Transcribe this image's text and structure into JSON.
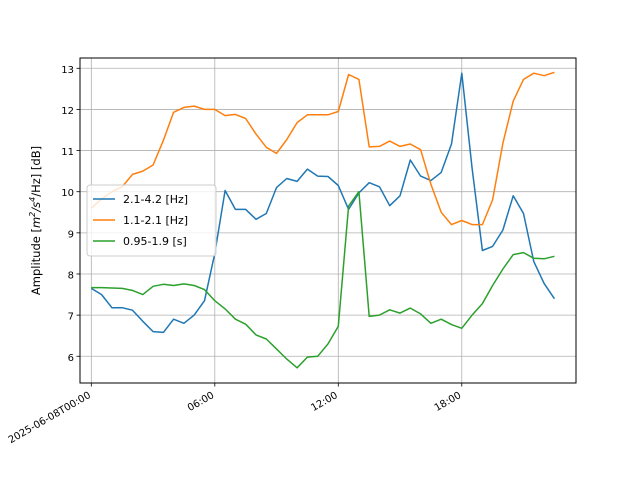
{
  "chart_data": {
    "type": "line",
    "ylabel_prefix": "Amplitude [",
    "ylabel_unit_m": "m",
    "ylabel_unit_m_exp": "2",
    "ylabel_unit_mid": "/s",
    "ylabel_unit_s_exp": "4",
    "ylabel_unit_end": "/Hz] [dB]",
    "xlabel": "",
    "ylim": [
      5.35,
      13.25
    ],
    "xlim_hours": [
      -0.55,
      23.55
    ],
    "grid": true,
    "legend_position": "center-left",
    "yticks": [
      6,
      7,
      8,
      9,
      10,
      11,
      12,
      13
    ],
    "xticks": [
      {
        "hour": 0,
        "label": "2025-06-08T00:00"
      },
      {
        "hour": 6,
        "label": "06:00"
      },
      {
        "hour": 12,
        "label": "12:00"
      },
      {
        "hour": 18,
        "label": "18:00"
      }
    ],
    "x_hours": [
      0,
      0.5,
      1,
      1.5,
      2,
      2.5,
      3,
      3.5,
      4,
      4.5,
      5,
      5.5,
      6,
      6.5,
      7,
      7.5,
      8,
      8.5,
      9,
      9.5,
      10,
      10.5,
      11,
      11.5,
      12,
      12.5,
      13,
      13.5,
      14,
      14.5,
      15,
      15.5,
      16,
      16.5,
      17,
      17.5,
      18,
      18.5,
      19,
      19.5,
      20,
      20.5,
      21,
      21.5,
      22,
      22.5
    ],
    "series": [
      {
        "name": "2.1-4.2 [Hz]",
        "color": "#1f77b4",
        "values": [
          7.65,
          7.5,
          7.18,
          7.18,
          7.12,
          6.85,
          6.6,
          6.58,
          6.9,
          6.8,
          7.0,
          7.35,
          8.5,
          10.03,
          9.57,
          9.57,
          9.33,
          9.47,
          10.1,
          10.32,
          10.25,
          10.55,
          10.38,
          10.37,
          10.15,
          9.57,
          9.97,
          10.22,
          10.12,
          9.66,
          9.9,
          10.77,
          10.38,
          10.27,
          10.47,
          11.16,
          12.88,
          10.57,
          8.57,
          8.67,
          9.07,
          9.9,
          9.47,
          8.3,
          7.77,
          7.4
        ]
      },
      {
        "name": "1.1-2.1 [Hz]",
        "color": "#ff7f0e",
        "values": [
          9.6,
          9.82,
          10.0,
          10.12,
          10.42,
          10.5,
          10.65,
          11.25,
          11.93,
          12.05,
          12.08,
          12.0,
          12.0,
          11.85,
          11.88,
          11.78,
          11.4,
          11.08,
          10.93,
          11.27,
          11.68,
          11.87,
          11.87,
          11.87,
          11.95,
          12.85,
          12.73,
          11.09,
          11.1,
          11.23,
          11.1,
          11.16,
          11.02,
          10.18,
          9.5,
          9.2,
          9.3,
          9.2,
          9.2,
          9.8,
          11.18,
          12.2,
          12.73,
          12.88,
          12.82,
          12.9
        ]
      },
      {
        "name": "0.95-1.9 [s]",
        "color": "#2ca02c",
        "values": [
          7.67,
          7.67,
          7.66,
          7.65,
          7.6,
          7.5,
          7.7,
          7.75,
          7.72,
          7.76,
          7.72,
          7.62,
          7.35,
          7.15,
          6.9,
          6.78,
          6.52,
          6.42,
          6.18,
          5.93,
          5.72,
          5.98,
          6.0,
          6.3,
          6.73,
          9.65,
          10.0,
          6.97,
          7.0,
          7.13,
          7.05,
          7.17,
          7.03,
          6.8,
          6.9,
          6.77,
          6.68,
          7.0,
          7.28,
          7.72,
          8.12,
          8.47,
          8.52,
          8.38,
          8.37,
          8.43
        ]
      }
    ]
  }
}
